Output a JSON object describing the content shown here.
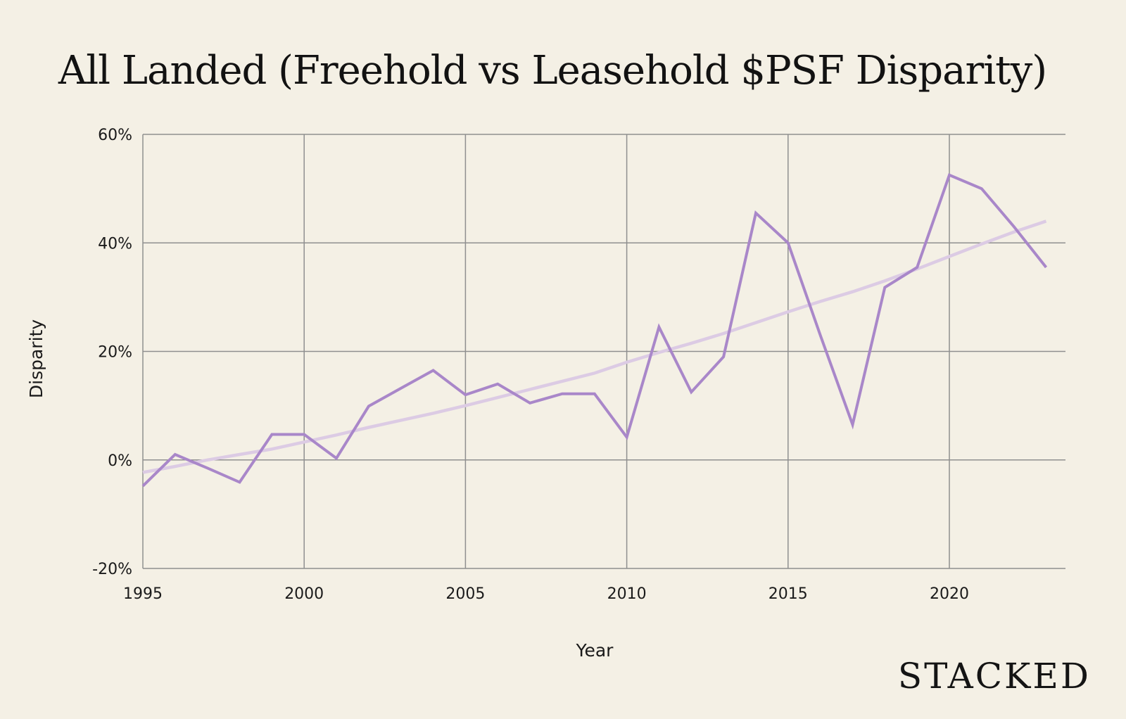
{
  "brand": "STACKED",
  "chart_data": {
    "type": "line",
    "title": "All Landed (Freehold vs Leasehold $PSF Disparity)",
    "xlabel": "Year",
    "ylabel": "Disparity",
    "xlim": [
      1995,
      2024
    ],
    "ylim": [
      -20,
      60
    ],
    "x_ticks": [
      1995,
      2000,
      2005,
      2010,
      2015,
      2020
    ],
    "x_tick_labels": [
      "1995",
      "2000",
      "2005",
      "2010",
      "2015",
      "2020"
    ],
    "y_ticks": [
      -20,
      0,
      20,
      40,
      60
    ],
    "y_tick_labels": [
      "-20%",
      "0%",
      "20%",
      "40%",
      "60%"
    ],
    "grid": true,
    "legend": "none",
    "series": [
      {
        "kind": "data",
        "color": "#a987c9",
        "x": [
          1995,
          1996,
          1997,
          1998,
          1999,
          2000,
          2001,
          2002,
          2003,
          2004,
          2005,
          2006,
          2007,
          2008,
          2009,
          2010,
          2011,
          2012,
          2013,
          2014,
          2015,
          2016,
          2017,
          2018,
          2019,
          2020,
          2021,
          2022,
          2023
        ],
        "values": [
          -4.8,
          1.0,
          -1.5,
          -4.1,
          4.7,
          4.7,
          0.3,
          9.9,
          13.2,
          16.5,
          12.0,
          14.0,
          10.5,
          12.2,
          12.2,
          4.2,
          24.5,
          12.5,
          19.0,
          45.5,
          40.0,
          23.0,
          6.5,
          31.8,
          35.5,
          52.5,
          50.0,
          43.0,
          35.5
        ]
      },
      {
        "kind": "trendline",
        "color": "#dccbe4",
        "x": [
          1995,
          1996,
          1997,
          1998,
          1999,
          2000,
          2001,
          2002,
          2003,
          2004,
          2005,
          2006,
          2007,
          2008,
          2009,
          2010,
          2011,
          2012,
          2013,
          2014,
          2015,
          2016,
          2017,
          2018,
          2019,
          2020,
          2021,
          2022,
          2023
        ],
        "values": [
          -2.3,
          -1.2,
          0.0,
          1.0,
          2.0,
          3.3,
          4.6,
          6.0,
          7.3,
          8.6,
          10.0,
          11.5,
          13.0,
          14.5,
          16.0,
          18.0,
          19.8,
          21.5,
          23.3,
          25.3,
          27.3,
          29.2,
          31.0,
          33.0,
          35.2,
          37.5,
          39.8,
          42.0,
          44.0
        ]
      }
    ]
  }
}
